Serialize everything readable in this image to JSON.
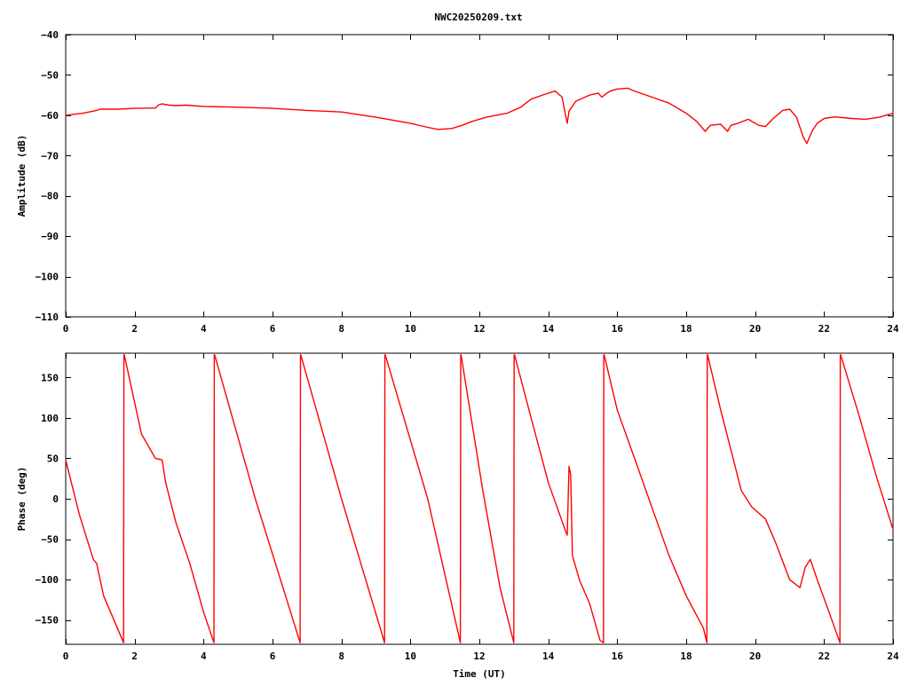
{
  "title": "NWC20250209.txt",
  "colors": {
    "series": "#ff0000",
    "axes": "#000000",
    "background": "#ffffff"
  },
  "chart_data": [
    {
      "type": "line",
      "ylabel": "Amplitude (dB)",
      "xlabel": "",
      "xlim": [
        0,
        24
      ],
      "ylim": [
        -110,
        -40
      ],
      "xticks": [
        0,
        2,
        4,
        6,
        8,
        10,
        12,
        14,
        16,
        18,
        20,
        22,
        24
      ],
      "yticks": [
        -110,
        -100,
        -90,
        -80,
        -70,
        -60,
        -50,
        -40
      ],
      "grid": false,
      "series": [
        {
          "x": [
            0,
            0.5,
            0.9,
            1.0,
            1.5,
            2.0,
            2.6,
            2.7,
            2.8,
            3.0,
            3.2,
            3.5,
            4.0,
            5.0,
            6.0,
            7.0,
            8.0,
            9.0,
            10.0,
            10.5,
            10.8,
            11.2,
            11.5,
            11.8,
            12.2,
            12.8,
            13.2,
            13.5,
            14.0,
            14.2,
            14.4,
            14.5,
            14.55,
            14.6,
            14.8,
            15.2,
            15.45,
            15.55,
            15.7,
            15.8,
            16.0,
            16.3,
            16.5,
            17.0,
            17.5,
            18.0,
            18.3,
            18.55,
            18.7,
            19.0,
            19.2,
            19.3,
            19.5,
            19.8,
            20.1,
            20.3,
            20.5,
            20.8,
            21.0,
            21.2,
            21.4,
            21.5,
            21.65,
            21.8,
            22.0,
            22.3,
            22.8,
            23.2,
            23.6,
            24.0
          ],
          "y": [
            -60,
            -59.5,
            -58.8,
            -58.5,
            -58.5,
            -58.3,
            -58.2,
            -57.4,
            -57.2,
            -57.5,
            -57.6,
            -57.5,
            -57.8,
            -58.0,
            -58.3,
            -58.8,
            -59.2,
            -60.5,
            -62.0,
            -63.0,
            -63.5,
            -63.3,
            -62.5,
            -61.5,
            -60.5,
            -59.5,
            -58.0,
            -56.0,
            -54.5,
            -54.0,
            -55.5,
            -60.0,
            -62.0,
            -59.0,
            -56.5,
            -55.0,
            -54.5,
            -55.5,
            -54.5,
            -54.0,
            -53.5,
            -53.3,
            -54.0,
            -55.5,
            -57.0,
            -59.5,
            -61.5,
            -64.0,
            -62.5,
            -62.2,
            -64.0,
            -62.5,
            -62.0,
            -61.0,
            -62.5,
            -62.8,
            -61.0,
            -58.8,
            -58.5,
            -60.5,
            -65.5,
            -67.0,
            -64.0,
            -62.0,
            -60.8,
            -60.4,
            -60.8,
            -61.0,
            -60.5,
            -59.5
          ]
        }
      ]
    },
    {
      "type": "line",
      "ylabel": "Phase (deg)",
      "xlabel": "Time (UT)",
      "xlim": [
        0,
        24
      ],
      "ylim": [
        -180,
        180
      ],
      "xticks": [
        0,
        2,
        4,
        6,
        8,
        10,
        12,
        14,
        16,
        18,
        20,
        22,
        24
      ],
      "yticks": [
        -150,
        -100,
        -50,
        0,
        50,
        100,
        150
      ],
      "grid": false,
      "series": [
        {
          "x": [
            0,
            0.4,
            0.8,
            0.9,
            1.1,
            1.4,
            1.68,
            1.69,
            1.7,
            2.2,
            2.6,
            2.8,
            2.9,
            3.2,
            3.6,
            4.0,
            4.3,
            4.31,
            4.32,
            5.5,
            6.8,
            6.81,
            6.82,
            8.0,
            9.25,
            9.26,
            9.27,
            10.5,
            11.45,
            11.46,
            11.47,
            12.1,
            12.6,
            13.0,
            13.01,
            13.02,
            13.5,
            14.0,
            14.5,
            14.55,
            14.6,
            14.65,
            14.7,
            14.9,
            15.2,
            15.5,
            15.6,
            15.61,
            15.62,
            16.0,
            16.5,
            17.0,
            17.5,
            18.0,
            18.5,
            18.6,
            18.61,
            18.62,
            19.0,
            19.3,
            19.6,
            19.9,
            20.3,
            20.6,
            21.0,
            21.3,
            21.45,
            21.6,
            21.8,
            22.1,
            22.46,
            22.47,
            22.48,
            23.0,
            23.5,
            24.0
          ],
          "y": [
            48,
            -20,
            -75,
            -80,
            -120,
            -150,
            -178,
            178,
            178,
            80,
            50,
            48,
            20,
            -30,
            -80,
            -140,
            -178,
            178,
            178,
            0,
            -178,
            178,
            178,
            0,
            -178,
            178,
            178,
            0,
            -178,
            178,
            178,
            10,
            -110,
            -178,
            178,
            178,
            100,
            20,
            -40,
            -45,
            40,
            30,
            -70,
            -100,
            -130,
            -175,
            -178,
            178,
            178,
            110,
            50,
            -10,
            -70,
            -120,
            -160,
            -178,
            178,
            178,
            110,
            60,
            10,
            -10,
            -25,
            -55,
            -100,
            -110,
            -85,
            -75,
            -100,
            -135,
            -178,
            178,
            178,
            105,
            30,
            -38
          ]
        }
      ]
    }
  ]
}
